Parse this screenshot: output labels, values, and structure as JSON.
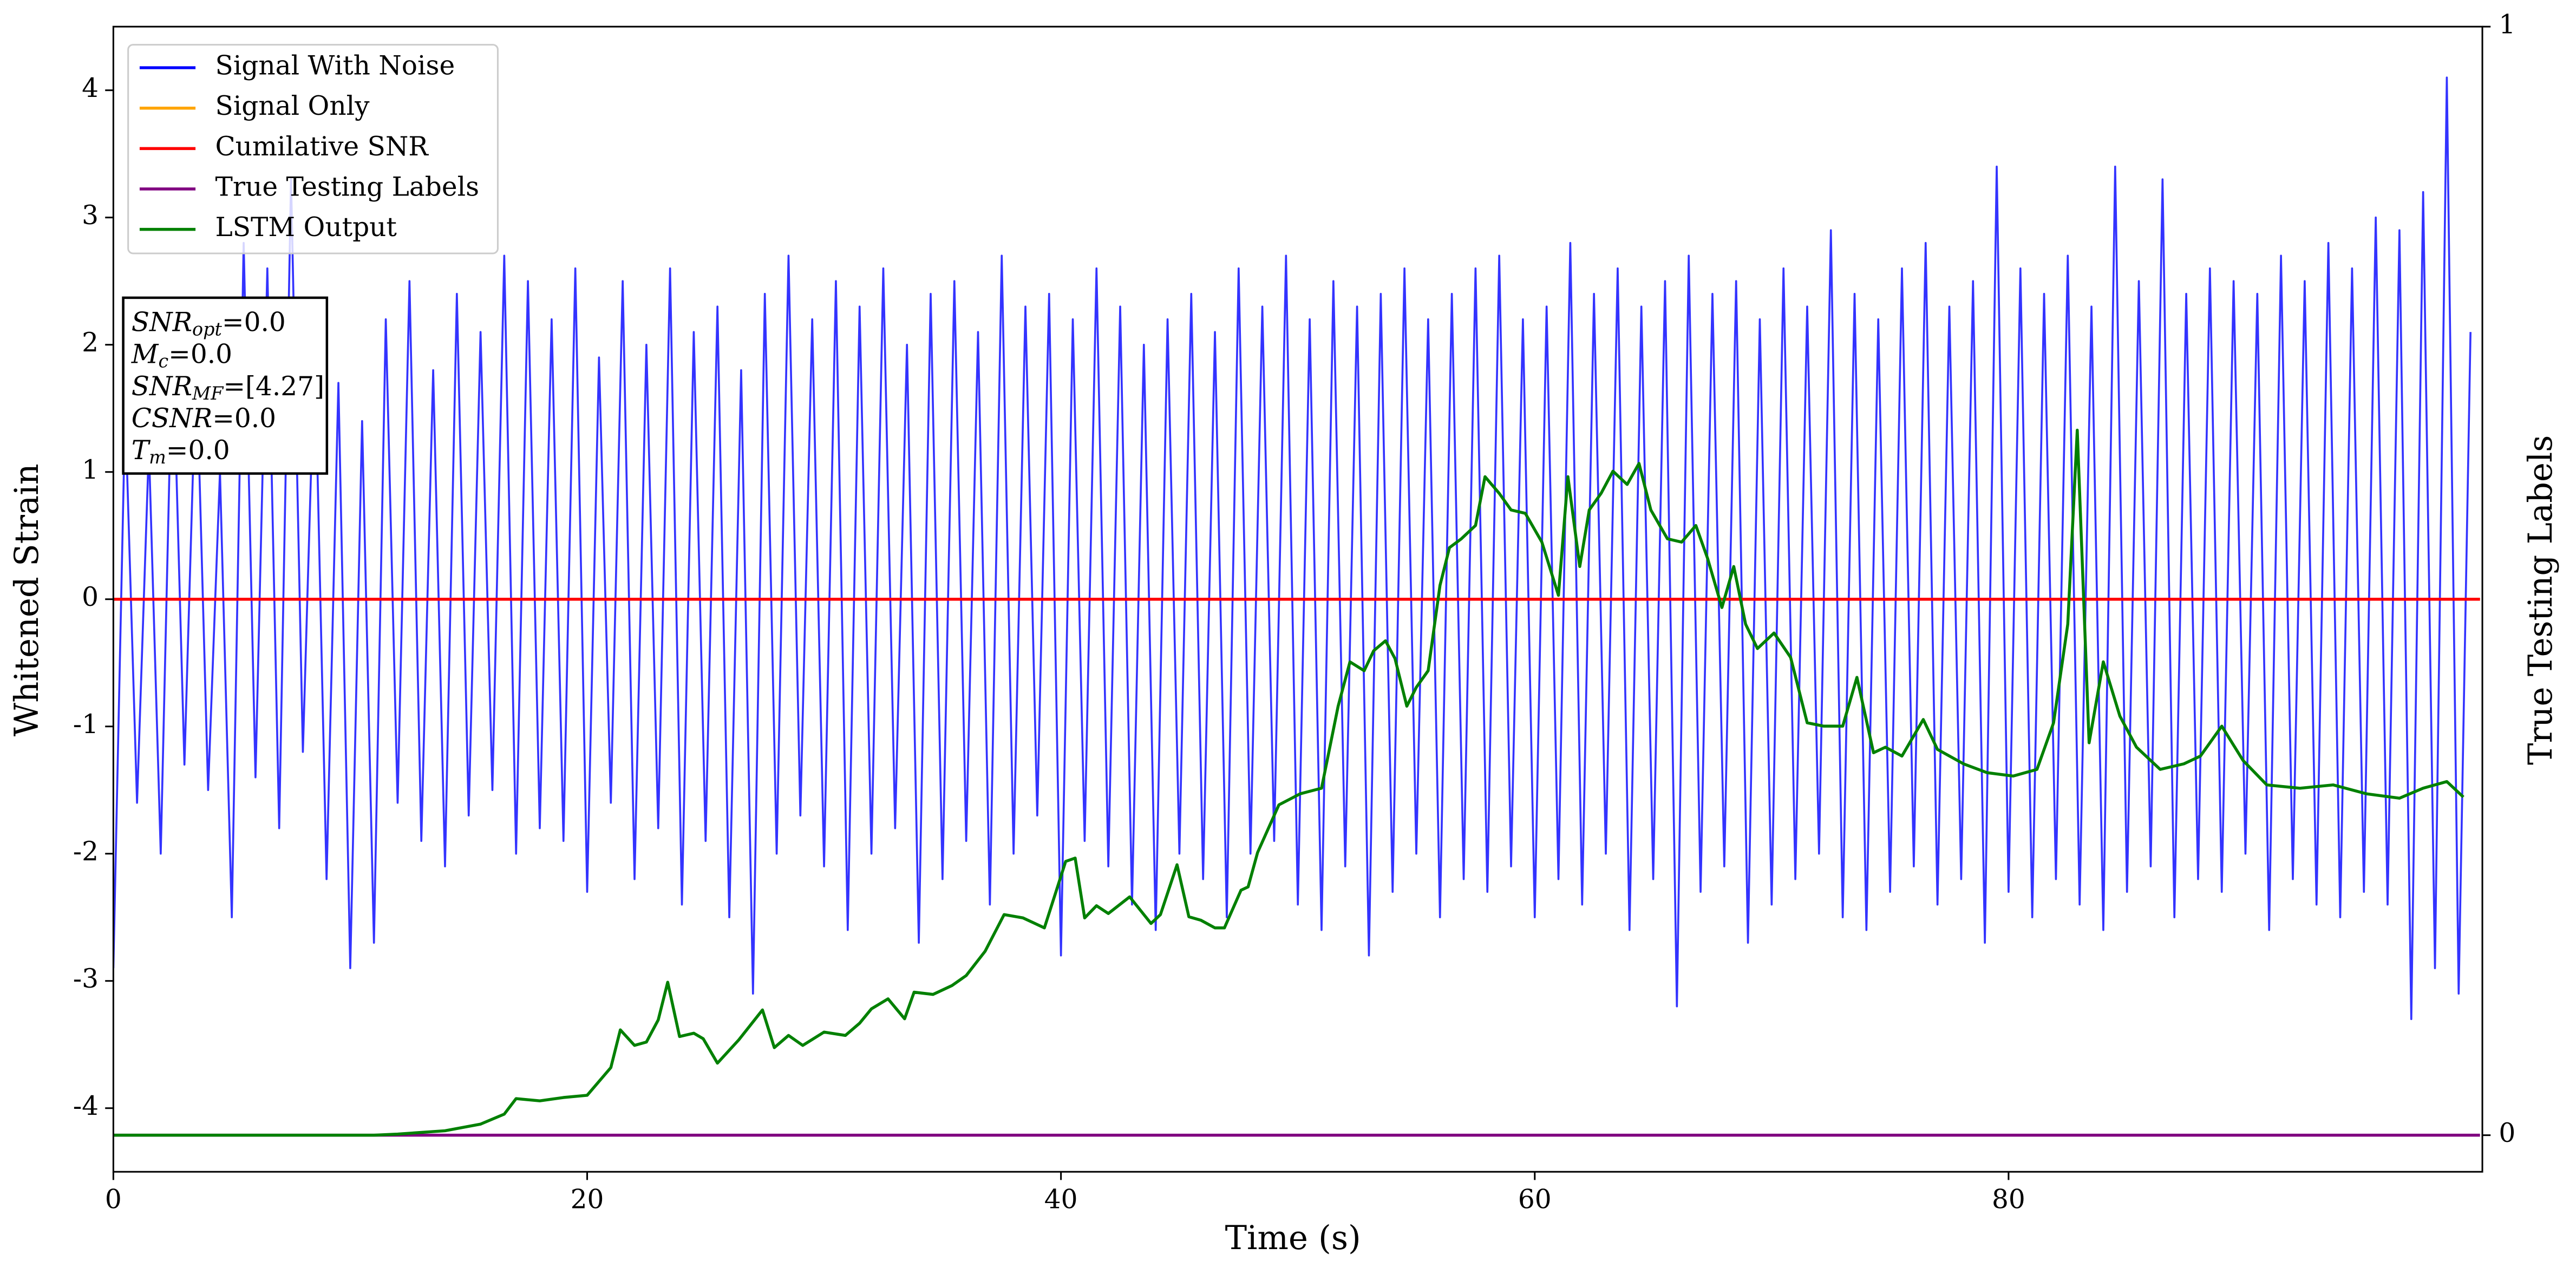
{
  "chart_data": {
    "type": "line",
    "xlabel": "Time (s)",
    "ylabel": "Whitened Strain",
    "y2label": "True Testing Labels",
    "xlim": [
      0,
      100
    ],
    "xticks": [
      0,
      20,
      40,
      60,
      80
    ],
    "ylim": [
      -4.5,
      4.5
    ],
    "yticks": [
      -4,
      -3,
      -2,
      -1,
      0,
      1,
      2,
      3,
      4
    ],
    "y2lim": [
      -0.033,
      1
    ],
    "y2ticks": [
      0,
      1
    ],
    "legend": "upper left",
    "annotation": [
      {
        "text": "SNR",
        "sub": "opt",
        "rest": "=0.0"
      },
      {
        "text": "M",
        "sub": "c",
        "rest": "=0.0"
      },
      {
        "text": "SNR",
        "sub": "MF",
        "rest": "=[4.27]"
      },
      {
        "text": "CSNR",
        "sub": null,
        "rest": "=0.0"
      },
      {
        "text": "T",
        "sub": "m",
        "rest": "=0.0"
      }
    ],
    "series": [
      {
        "name": "Signal With Noise",
        "color": "#0000ff",
        "axis": "y",
        "x": [
          0,
          0.5,
          1,
          1.5,
          2,
          2.5,
          3,
          3.5,
          4,
          4.5,
          5,
          5.5,
          6,
          6.5,
          7,
          7.5,
          8,
          8.5,
          9,
          9.5,
          10,
          10.5,
          11,
          11.5,
          12,
          12.5,
          13,
          13.5,
          14,
          14.5,
          15,
          15.5,
          16,
          16.5,
          17,
          17.5,
          18,
          18.5,
          19,
          19.5,
          20,
          20.5,
          21,
          21.5,
          22,
          22.5,
          23,
          23.5,
          24,
          24.5,
          25,
          25.5,
          26,
          26.5,
          27,
          27.5,
          28,
          28.5,
          29,
          29.5,
          30,
          30.5,
          31,
          31.5,
          32,
          32.5,
          33,
          33.5,
          34,
          34.5,
          35,
          35.5,
          36,
          36.5,
          37,
          37.5,
          38,
          38.5,
          39,
          39.5,
          40,
          40.5,
          41,
          41.5,
          42,
          42.5,
          43,
          43.5,
          44,
          44.5,
          45,
          45.5,
          46,
          46.5,
          47,
          47.5,
          48,
          48.5,
          49,
          49.5,
          50,
          50.5,
          51,
          51.5,
          52,
          52.5,
          53,
          53.5,
          54,
          54.5,
          55,
          55.5,
          56,
          56.5,
          57,
          57.5,
          58,
          58.5,
          59,
          59.5,
          60,
          60.5,
          61,
          61.5,
          62,
          62.5,
          63,
          63.5,
          64,
          64.5,
          65,
          65.5,
          66,
          66.5,
          67,
          67.5,
          68,
          68.5,
          69,
          69.5,
          70,
          70.5,
          71,
          71.5,
          72,
          72.5,
          73,
          73.5,
          74,
          74.5,
          75,
          75.5,
          76,
          76.5,
          77,
          77.5,
          78,
          78.5,
          79,
          79.5,
          80,
          80.5,
          81,
          81.5,
          82,
          82.5,
          83,
          83.5,
          84,
          84.5,
          85,
          85.5,
          86,
          86.5,
          87,
          87.5,
          88,
          88.5,
          89,
          89.5,
          90,
          90.5,
          91,
          91.5,
          92,
          92.5,
          93,
          93.5,
          94,
          94.5,
          95,
          95.5,
          96,
          96.5,
          97,
          97.5,
          98,
          98.5,
          99,
          99.5
        ],
        "values": [
          -2.9,
          1.5,
          -1.6,
          1.2,
          -2.0,
          2.1,
          -1.3,
          1.9,
          -1.5,
          1.0,
          -2.5,
          2.8,
          -1.4,
          2.6,
          -1.8,
          3.3,
          -1.2,
          2.0,
          -2.2,
          1.7,
          -2.9,
          1.4,
          -2.7,
          2.2,
          -1.6,
          2.5,
          -1.9,
          1.8,
          -2.1,
          2.4,
          -1.7,
          2.1,
          -1.5,
          2.7,
          -2.0,
          2.5,
          -1.8,
          2.2,
          -1.9,
          2.6,
          -2.3,
          1.9,
          -1.6,
          2.5,
          -2.2,
          2.0,
          -1.8,
          2.6,
          -2.4,
          2.1,
          -1.9,
          2.3,
          -2.5,
          1.8,
          -3.1,
          2.4,
          -2.0,
          2.7,
          -1.7,
          2.2,
          -2.1,
          2.5,
          -2.6,
          2.3,
          -2.0,
          2.6,
          -1.8,
          2.0,
          -2.7,
          2.4,
          -2.2,
          2.5,
          -1.9,
          2.1,
          -2.4,
          2.7,
          -2.0,
          2.3,
          -1.7,
          2.4,
          -2.8,
          2.2,
          -1.9,
          2.6,
          -2.1,
          2.3,
          -2.4,
          2.0,
          -2.6,
          2.2,
          -2.0,
          2.4,
          -2.2,
          2.1,
          -2.5,
          2.6,
          -2.0,
          2.3,
          -1.9,
          2.7,
          -2.4,
          2.2,
          -2.6,
          2.5,
          -2.1,
          2.3,
          -2.8,
          2.4,
          -2.3,
          2.6,
          -2.0,
          2.2,
          -2.5,
          2.4,
          -2.2,
          2.6,
          -2.3,
          2.7,
          -2.1,
          2.2,
          -2.5,
          2.3,
          -2.2,
          2.8,
          -2.4,
          2.4,
          -2.0,
          2.6,
          -2.6,
          2.3,
          -2.2,
          2.5,
          -3.2,
          2.7,
          -2.3,
          2.4,
          -2.1,
          2.5,
          -2.7,
          2.2,
          -2.4,
          2.6,
          -2.2,
          2.3,
          -2.0,
          2.9,
          -2.5,
          2.4,
          -2.6,
          2.2,
          -2.3,
          2.6,
          -2.1,
          2.8,
          -2.4,
          2.3,
          -2.2,
          2.5,
          -2.7,
          3.4,
          -2.3,
          2.6,
          -2.5,
          2.4,
          -2.2,
          2.7,
          -2.4,
          2.3,
          -2.6,
          3.4,
          -2.3,
          2.5,
          -2.1,
          3.3,
          -2.5,
          2.4,
          -2.2,
          2.6,
          -2.3,
          2.5,
          -2.0,
          2.4,
          -2.6,
          2.7,
          -2.2,
          2.5,
          -2.4,
          2.8,
          -2.5,
          2.6,
          -2.3,
          3.0,
          -2.4,
          2.9,
          -3.3,
          3.2,
          -2.9,
          4.1,
          -3.1,
          2.1
        ]
      },
      {
        "name": "Signal Only",
        "color": "orange",
        "axis": "y",
        "x": [
          0,
          99.9
        ],
        "values": [
          0,
          0
        ]
      },
      {
        "name": "Cumilative SNR",
        "color": "red",
        "axis": "y",
        "x": [
          0,
          99.9
        ],
        "values": [
          0,
          0
        ]
      },
      {
        "name": "True Testing Labels",
        "color": "purple",
        "axis": "y2",
        "x": [
          0,
          99.9
        ],
        "values": [
          0,
          0
        ]
      },
      {
        "name": "LSTM Output",
        "color": "green",
        "axis": "y2",
        "x": [
          0,
          11,
          12.0,
          14.0,
          15.5,
          16.5,
          17.0,
          18.0,
          19.0,
          20.0,
          21.0,
          21.4,
          22.0,
          22.5,
          23.0,
          23.4,
          23.9,
          24.5,
          24.9,
          25.5,
          26.4,
          27.4,
          27.9,
          28.5,
          29.1,
          30.0,
          30.9,
          31.5,
          32.0,
          32.7,
          33.4,
          33.8,
          34.6,
          35.4,
          36.0,
          36.8,
          37.6,
          38.4,
          39.3,
          40.2,
          40.6,
          41.0,
          41.5,
          42.0,
          42.9,
          43.8,
          44.2,
          44.9,
          45.4,
          45.9,
          46.5,
          46.9,
          47.6,
          47.9,
          48.3,
          49.2,
          50.1,
          51.0,
          51.7,
          52.2,
          52.8,
          53.2,
          53.7,
          54.1,
          54.6,
          55.0,
          55.5,
          56.0,
          56.4,
          56.9,
          57.5,
          57.9,
          58.5,
          59.0,
          59.6,
          60.3,
          61.0,
          61.4,
          61.9,
          62.3,
          62.8,
          63.3,
          63.9,
          64.4,
          64.9,
          65.6,
          66.2,
          66.8,
          67.3,
          67.9,
          68.4,
          68.9,
          69.4,
          70.1,
          70.8,
          71.5,
          72.2,
          73.0,
          73.6,
          74.3,
          74.8,
          75.5,
          76.4,
          77.0,
          78.1,
          79.1,
          80.2,
          81.2,
          81.9,
          82.5,
          82.9,
          83.4,
          84.0,
          84.7,
          85.4,
          86.4,
          87.4,
          88.1,
          89.0,
          89.9,
          90.9,
          92.3,
          93.7,
          95.1,
          96.5,
          97.5,
          98.5,
          99.2
        ],
        "values": [
          0,
          0,
          0.001,
          0.004,
          0.01,
          0.019,
          0.033,
          0.031,
          0.034,
          0.036,
          0.061,
          0.095,
          0.081,
          0.084,
          0.104,
          0.138,
          0.089,
          0.092,
          0.087,
          0.065,
          0.086,
          0.113,
          0.079,
          0.09,
          0.081,
          0.093,
          0.09,
          0.101,
          0.114,
          0.123,
          0.105,
          0.129,
          0.127,
          0.135,
          0.144,
          0.166,
          0.199,
          0.196,
          0.187,
          0.247,
          0.25,
          0.196,
          0.207,
          0.2,
          0.215,
          0.191,
          0.199,
          0.244,
          0.197,
          0.194,
          0.187,
          0.187,
          0.221,
          0.224,
          0.255,
          0.298,
          0.308,
          0.313,
          0.387,
          0.427,
          0.419,
          0.437,
          0.446,
          0.43,
          0.387,
          0.404,
          0.419,
          0.496,
          0.53,
          0.538,
          0.55,
          0.594,
          0.579,
          0.564,
          0.561,
          0.535,
          0.487,
          0.594,
          0.513,
          0.564,
          0.579,
          0.599,
          0.587,
          0.606,
          0.564,
          0.538,
          0.535,
          0.55,
          0.52,
          0.476,
          0.513,
          0.461,
          0.439,
          0.453,
          0.431,
          0.372,
          0.369,
          0.369,
          0.413,
          0.345,
          0.35,
          0.342,
          0.375,
          0.348,
          0.335,
          0.327,
          0.324,
          0.33,
          0.372,
          0.461,
          0.636,
          0.354,
          0.427,
          0.378,
          0.35,
          0.33,
          0.335,
          0.342,
          0.369,
          0.338,
          0.316,
          0.313,
          0.316,
          0.308,
          0.304,
          0.313,
          0.319,
          0.305
        ]
      }
    ]
  }
}
